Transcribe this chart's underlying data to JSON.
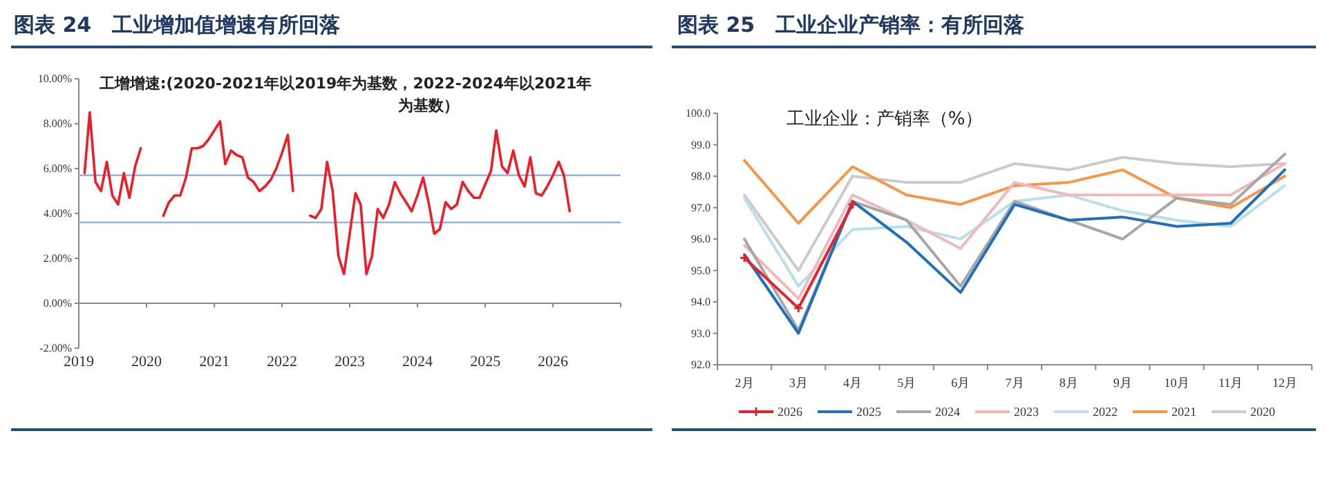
{
  "chart_data": [
    {
      "type": "line",
      "title": "图表 24　工业增加值增速有所回落",
      "subtitle": "工增增速:(2020-2021年以2019年为基数，2022-2024年以2021年为基数）",
      "x": [
        "2019-02",
        "2019-03",
        "2019-04",
        "2019-05",
        "2019-06",
        "2019-07",
        "2019-08",
        "2019-09",
        "2019-10",
        "2019-11",
        "2019-12",
        "2020-01",
        "2020-02",
        "2020-03",
        "2020-04",
        "2020-05",
        "2020-06",
        "2020-07",
        "2020-08",
        "2020-09",
        "2020-10",
        "2020-11",
        "2020-12",
        "2021-01",
        "2021-02",
        "2021-03",
        "2021-04",
        "2021-05",
        "2021-06",
        "2021-07",
        "2021-08",
        "2021-09",
        "2021-10",
        "2021-11",
        "2021-12",
        "2022-01",
        "2022-02",
        "2022-03",
        "2022-04",
        "2022-05",
        "2022-06",
        "2022-07",
        "2022-08",
        "2022-09",
        "2022-10",
        "2022-11",
        "2022-12",
        "2023-01",
        "2023-02",
        "2023-03",
        "2023-04",
        "2023-05",
        "2023-06",
        "2023-07",
        "2023-08",
        "2023-09",
        "2023-10",
        "2023-11",
        "2023-12",
        "2024-01",
        "2024-02",
        "2024-03",
        "2024-04",
        "2024-05",
        "2024-06",
        "2024-07",
        "2024-08",
        "2024-09",
        "2024-10",
        "2024-11",
        "2024-12",
        "2025-01",
        "2025-02",
        "2025-03",
        "2025-04",
        "2025-05",
        "2025-06",
        "2025-07",
        "2025-08",
        "2025-09",
        "2025-10",
        "2025-11",
        "2025-12",
        "2026-01",
        "2026-02",
        "2026-03",
        "2026-04"
      ],
      "series": [
        {
          "color": "#ee1c25",
          "values": [
            5.8,
            8.5,
            5.4,
            5.0,
            6.3,
            4.8,
            4.4,
            5.8,
            4.7,
            6.1,
            6.9,
            null,
            null,
            null,
            3.9,
            4.5,
            4.8,
            4.8,
            5.6,
            6.9,
            6.9,
            7.0,
            7.3,
            7.7,
            8.1,
            6.2,
            6.8,
            6.6,
            6.5,
            5.6,
            5.4,
            5.0,
            5.2,
            5.5,
            6.0,
            6.7,
            7.5,
            5.0,
            null,
            null,
            3.9,
            3.8,
            4.2,
            6.3,
            5.0,
            2.1,
            1.3,
            3.1,
            4.9,
            4.4,
            1.3,
            2.1,
            4.2,
            3.8,
            4.4,
            5.4,
            4.9,
            4.5,
            4.1,
            4.8,
            5.6,
            4.5,
            3.1,
            3.3,
            4.5,
            4.2,
            4.4,
            5.4,
            5.0,
            4.7,
            4.7,
            5.3,
            5.9,
            7.7,
            6.1,
            5.8,
            6.8,
            5.7,
            5.2,
            6.5,
            4.9,
            4.8,
            5.2,
            5.7,
            6.3,
            5.7,
            4.1
          ]
        }
      ],
      "xlim": [
        "2019-01",
        "2027-01"
      ],
      "xticks": [
        "2019",
        "2020",
        "2021",
        "2022",
        "2023",
        "2024",
        "2025",
        "2026"
      ],
      "ylim": [
        -2,
        10
      ],
      "yticks": [
        {
          "value": -2,
          "label": "-2.00%"
        },
        {
          "value": 0,
          "label": "0.00%"
        },
        {
          "value": 2,
          "label": "2.00%"
        },
        {
          "value": 4,
          "label": "4.00%"
        },
        {
          "value": 6,
          "label": "6.00%"
        },
        {
          "value": 8,
          "label": "8.00%"
        },
        {
          "value": 10,
          "label": "10.00%"
        }
      ],
      "ref_lines": [
        {
          "axis": "y",
          "value": 5.7,
          "color": "#8eb4e3"
        },
        {
          "axis": "y",
          "value": 3.6,
          "color": "#8eb4e3"
        }
      ],
      "legend": false
    },
    {
      "type": "line",
      "title": "图表 25　工业企业产销率：有所回落",
      "subtitle": "工业企业：产销率（%）",
      "categories": [
        "2月",
        "3月",
        "4月",
        "5月",
        "6月",
        "7月",
        "8月",
        "9月",
        "10月",
        "11月",
        "12月"
      ],
      "series": [
        {
          "name": "2026",
          "color": "#e8202a",
          "marker": "cross",
          "values": [
            95.4,
            93.8,
            97.1,
            null,
            null,
            null,
            null,
            null,
            null,
            null,
            null
          ]
        },
        {
          "name": "2025",
          "color": "#1f6ebf",
          "values": [
            95.5,
            93.0,
            97.2,
            95.9,
            94.3,
            97.1,
            96.6,
            96.7,
            96.4,
            96.5,
            98.2
          ]
        },
        {
          "name": "2024",
          "color": "#a6a6a6",
          "values": [
            96.0,
            93.1,
            97.2,
            96.6,
            94.5,
            97.2,
            96.6,
            96.0,
            97.3,
            97.1,
            98.7
          ]
        },
        {
          "name": "2023",
          "color": "#f0b8b8",
          "values": [
            95.8,
            94.1,
            97.4,
            96.6,
            95.7,
            97.8,
            97.4,
            97.4,
            97.4,
            97.4,
            98.4
          ]
        },
        {
          "name": "2022",
          "color": "#b7e0ec",
          "values": [
            97.3,
            94.5,
            96.3,
            96.4,
            96.0,
            97.2,
            97.4,
            96.9,
            96.6,
            96.4,
            97.7
          ]
        },
        {
          "name": "2021",
          "color": "#f79646",
          "values": [
            98.5,
            96.5,
            98.3,
            97.4,
            97.1,
            97.7,
            97.8,
            98.2,
            97.3,
            97.0,
            98.0
          ]
        },
        {
          "name": "2020",
          "color": "#cacaca",
          "values": [
            97.4,
            95.0,
            98.0,
            97.8,
            97.8,
            98.4,
            98.2,
            98.6,
            98.4,
            98.3,
            98.4
          ]
        }
      ],
      "ylim": [
        92,
        100
      ],
      "yticks": [
        {
          "value": 92,
          "label": "92.0"
        },
        {
          "value": 93,
          "label": "93.0"
        },
        {
          "value": 94,
          "label": "94.0"
        },
        {
          "value": 95,
          "label": "95.0"
        },
        {
          "value": 96,
          "label": "96.0"
        },
        {
          "value": 97,
          "label": "97.0"
        },
        {
          "value": 98,
          "label": "98.0"
        },
        {
          "value": 99,
          "label": "99.0"
        },
        {
          "value": 100,
          "label": "100.0"
        }
      ],
      "legend": "bottom"
    }
  ]
}
